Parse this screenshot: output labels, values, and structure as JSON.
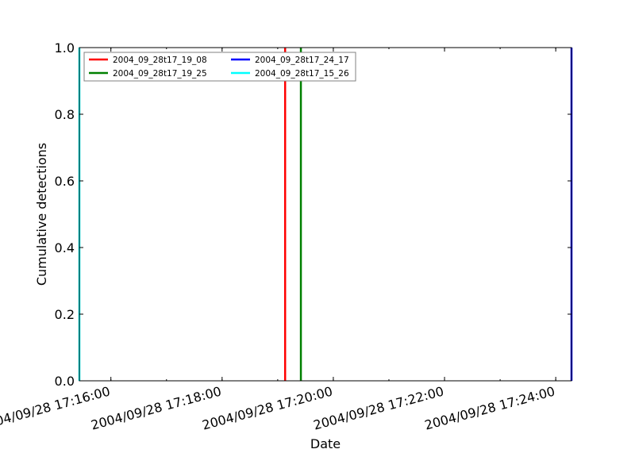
{
  "chart_data": {
    "type": "line",
    "title": "",
    "xlabel": "Date",
    "ylabel": "Cumulative detections",
    "x_tick_labels": [
      "2004/09/28 17:16:00",
      "2004/09/28 17:18:00",
      "2004/09/28 17:20:00",
      "2004/09/28 17:22:00",
      "2004/09/28 17:24:00"
    ],
    "x_ticks": [
      "2004-09-28T17:16:00",
      "2004-09-28T17:18:00",
      "2004-09-28T17:20:00",
      "2004-09-28T17:22:00",
      "2004-09-28T17:24:00"
    ],
    "xlim": [
      "2004-09-28T17:15:26",
      "2004-09-28T17:24:17"
    ],
    "y_tick_labels": [
      "0.0",
      "0.2",
      "0.4",
      "0.6",
      "0.8",
      "1.0"
    ],
    "y_ticks": [
      0.0,
      0.2,
      0.4,
      0.6,
      0.8,
      1.0
    ],
    "ylim": [
      0.0,
      1.0
    ],
    "grid": false,
    "legend_position": "top-left",
    "legend_columns": 2,
    "series": [
      {
        "name": "2004_09_28t17_19_08",
        "color": "#ff0000",
        "x": [
          "2004-09-28T17:19:08",
          "2004-09-28T17:19:08"
        ],
        "y": [
          0.0,
          1.0
        ]
      },
      {
        "name": "2004_09_28t17_19_25",
        "color": "#008000",
        "x": [
          "2004-09-28T17:19:25",
          "2004-09-28T17:19:25"
        ],
        "y": [
          0.0,
          1.0
        ]
      },
      {
        "name": "2004_09_28t17_24_17",
        "color": "#0000ff",
        "x": [
          "2004-09-28T17:24:17",
          "2004-09-28T17:24:17"
        ],
        "y": [
          0.0,
          1.0
        ]
      },
      {
        "name": "2004_09_28t17_15_26",
        "color": "#00ffff",
        "x": [
          "2004-09-28T17:15:26",
          "2004-09-28T17:15:26"
        ],
        "y": [
          0.0,
          1.0
        ]
      }
    ]
  }
}
